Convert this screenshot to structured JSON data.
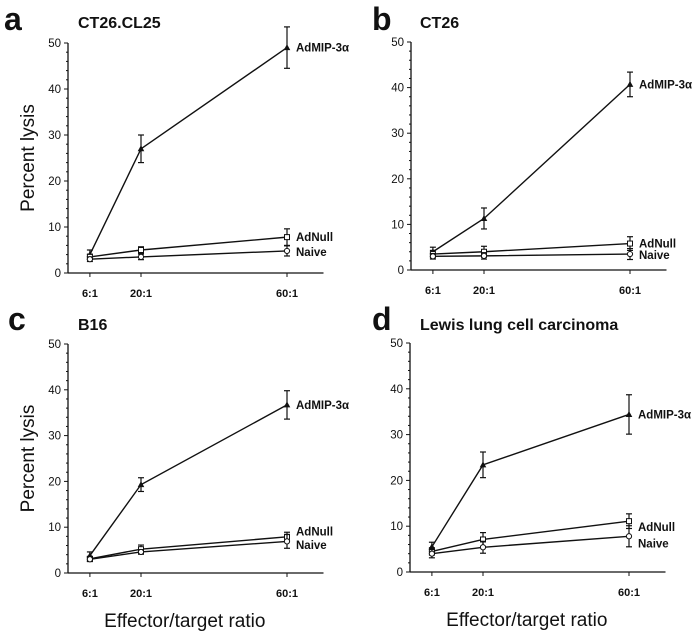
{
  "chart_data": [
    {
      "type": "line",
      "panel": "a",
      "title": "CT26.CL25",
      "ylabel": "Percent lysis",
      "xlabel": "",
      "categories": [
        "6:1",
        "20:1",
        "60:1"
      ],
      "x": [
        6,
        20,
        60
      ],
      "ylim": [
        0,
        50
      ],
      "yticks": [
        0,
        10,
        20,
        30,
        40,
        50
      ],
      "grid": false,
      "series": [
        {
          "name": "AdMIP-3α",
          "marker": "filled-triangle",
          "values": [
            4,
            27,
            49
          ],
          "errors": [
            1,
            3,
            4.5
          ]
        },
        {
          "name": "AdNull",
          "marker": "open-square",
          "values": [
            3.5,
            5,
            7.8
          ],
          "errors": [
            0.6,
            0.7,
            1.8
          ]
        },
        {
          "name": "Naive",
          "marker": "open-circle",
          "values": [
            3,
            3.5,
            4.8
          ],
          "errors": [
            0.5,
            0.6,
            1.1
          ]
        }
      ]
    },
    {
      "type": "line",
      "panel": "b",
      "title": "CT26",
      "ylabel": "",
      "xlabel": "",
      "categories": [
        "6:1",
        "20:1",
        "60:1"
      ],
      "x": [
        6,
        20,
        60
      ],
      "ylim": [
        0,
        50
      ],
      "yticks": [
        0,
        10,
        20,
        30,
        40,
        50
      ],
      "grid": false,
      "series": [
        {
          "name": "AdMIP-3α",
          "marker": "filled-triangle",
          "values": [
            4,
            11.3,
            40.7
          ],
          "errors": [
            1,
            2.3,
            2.7
          ]
        },
        {
          "name": "AdNull",
          "marker": "open-square",
          "values": [
            3.5,
            4,
            5.8
          ],
          "errors": [
            0.8,
            1.2,
            1.5
          ]
        },
        {
          "name": "Naive",
          "marker": "open-circle",
          "values": [
            3,
            3.1,
            3.5
          ],
          "errors": [
            0.6,
            0.7,
            1.2
          ]
        }
      ]
    },
    {
      "type": "line",
      "panel": "c",
      "title": "B16",
      "ylabel": "Percent lysis",
      "xlabel": "Effector/target ratio",
      "categories": [
        "6:1",
        "20:1",
        "60:1"
      ],
      "x": [
        6,
        20,
        60
      ],
      "ylim": [
        0,
        50
      ],
      "yticks": [
        0,
        10,
        20,
        30,
        40,
        50
      ],
      "grid": false,
      "series": [
        {
          "name": "AdMIP-3α",
          "marker": "filled-triangle",
          "values": [
            3.8,
            19.3,
            36.7
          ],
          "errors": [
            0.8,
            1.5,
            3.1
          ]
        },
        {
          "name": "AdNull",
          "marker": "open-square",
          "values": [
            3.1,
            5.2,
            7.9
          ],
          "errors": [
            0.5,
            0.9,
            1
          ]
        },
        {
          "name": "Naive",
          "marker": "open-circle",
          "values": [
            3,
            4.6,
            6.9
          ],
          "errors": [
            0.5,
            0.5,
            1.5
          ]
        }
      ]
    },
    {
      "type": "line",
      "panel": "d",
      "title": "Lewis lung cell carcinoma",
      "ylabel": "",
      "xlabel": "Effector/target ratio",
      "categories": [
        "6:1",
        "20:1",
        "60:1"
      ],
      "x": [
        6,
        20,
        60
      ],
      "ylim": [
        0,
        50
      ],
      "yticks": [
        0,
        10,
        20,
        30,
        40,
        50
      ],
      "grid": false,
      "series": [
        {
          "name": "AdMIP-3α",
          "marker": "filled-triangle",
          "values": [
            5.5,
            23.4,
            34.4
          ],
          "errors": [
            1,
            2.8,
            4.3
          ]
        },
        {
          "name": "AdNull",
          "marker": "open-square",
          "values": [
            4.5,
            7.1,
            11.1
          ],
          "errors": [
            0.8,
            1.5,
            1.6
          ]
        },
        {
          "name": "Naive",
          "marker": "open-circle",
          "values": [
            4,
            5.4,
            7.8
          ],
          "errors": [
            0.9,
            1.3,
            2.3
          ]
        }
      ]
    }
  ]
}
